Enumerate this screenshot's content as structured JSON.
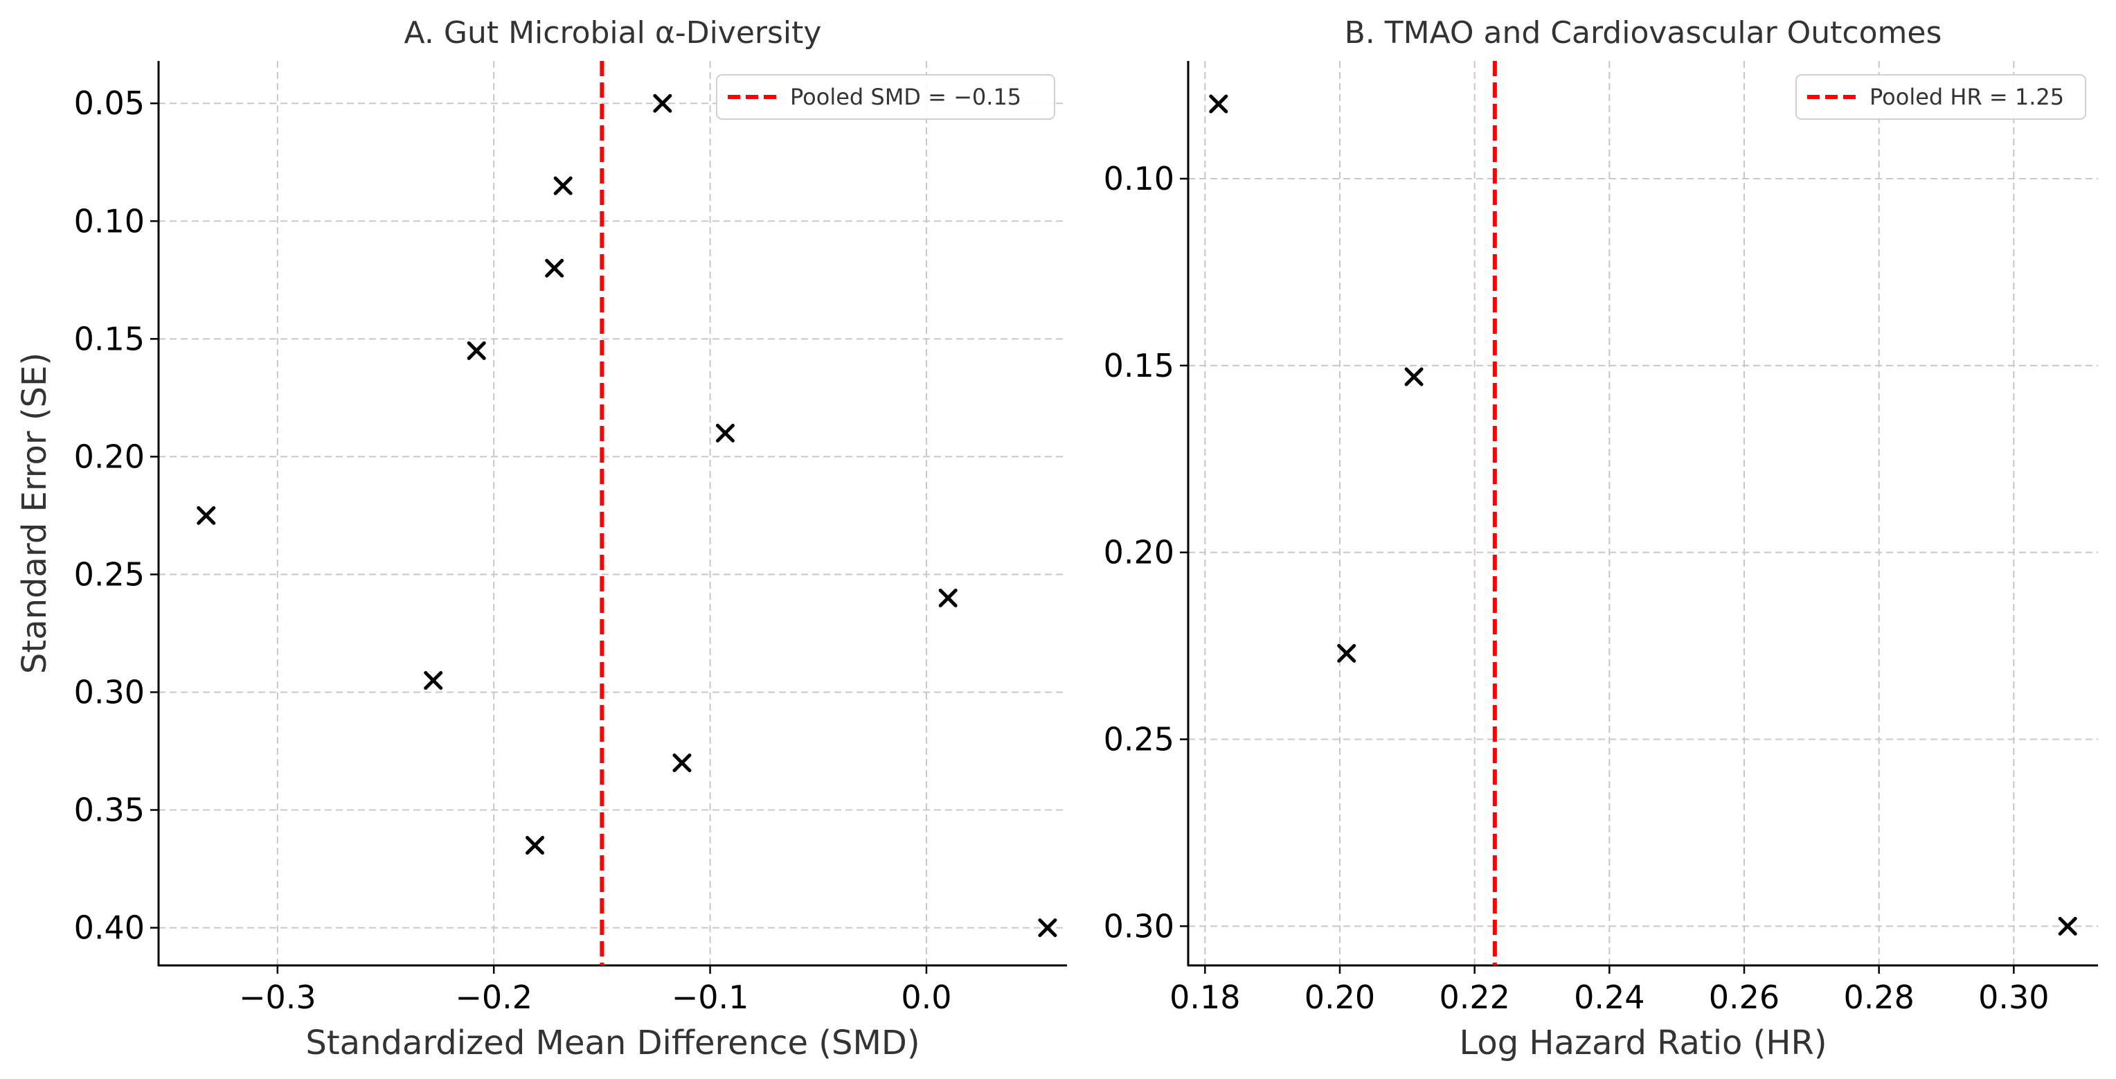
{
  "chart_data": [
    {
      "type": "scatter",
      "title": "A. Gut Microbial α-Diversity",
      "xlabel": "Standardized Mean Difference (SMD)",
      "ylabel": "Standard Error (SE)",
      "xlim": [
        -0.355,
        0.065
      ],
      "ylim": [
        0.032,
        0.416
      ],
      "y_inverted": true,
      "grid": true,
      "marker": "x",
      "x_ticks": [
        -0.3,
        -0.2,
        -0.1,
        0.0
      ],
      "x_tick_labels": [
        "−0.3",
        "−0.2",
        "−0.1",
        "0.0"
      ],
      "y_ticks": [
        0.05,
        0.1,
        0.15,
        0.2,
        0.25,
        0.3,
        0.35,
        0.4
      ],
      "y_tick_labels": [
        "0.05",
        "0.10",
        "0.15",
        "0.20",
        "0.25",
        "0.30",
        "0.35",
        "0.40"
      ],
      "points": [
        {
          "x": -0.122,
          "y": 0.05
        },
        {
          "x": -0.168,
          "y": 0.085
        },
        {
          "x": -0.172,
          "y": 0.12
        },
        {
          "x": -0.208,
          "y": 0.155
        },
        {
          "x": -0.093,
          "y": 0.19
        },
        {
          "x": -0.333,
          "y": 0.225
        },
        {
          "x": 0.01,
          "y": 0.26
        },
        {
          "x": -0.228,
          "y": 0.295
        },
        {
          "x": -0.113,
          "y": 0.33
        },
        {
          "x": -0.181,
          "y": 0.365
        },
        {
          "x": 0.056,
          "y": 0.4
        }
      ],
      "reference_line": {
        "x": -0.15,
        "color": "#ff0000",
        "style": "dashed"
      },
      "legend": {
        "label": "Pooled SMD = −0.15",
        "placement": "top-right"
      }
    },
    {
      "type": "scatter",
      "title": "B. TMAO and Cardiovascular Outcomes",
      "xlabel": "Log Hazard Ratio (HR)",
      "ylabel": "",
      "xlim": [
        0.1775,
        0.3125
      ],
      "ylim": [
        0.0685,
        0.3105
      ],
      "y_inverted": true,
      "grid": true,
      "marker": "x",
      "x_ticks": [
        0.18,
        0.2,
        0.22,
        0.24,
        0.26,
        0.28,
        0.3
      ],
      "x_tick_labels": [
        "0.18",
        "0.20",
        "0.22",
        "0.24",
        "0.26",
        "0.28",
        "0.30"
      ],
      "y_ticks": [
        0.1,
        0.15,
        0.2,
        0.25,
        0.3
      ],
      "y_tick_labels": [
        "0.10",
        "0.15",
        "0.20",
        "0.25",
        "0.30"
      ],
      "points": [
        {
          "x": 0.182,
          "y": 0.08
        },
        {
          "x": 0.211,
          "y": 0.153
        },
        {
          "x": 0.201,
          "y": 0.227
        },
        {
          "x": 0.308,
          "y": 0.3
        }
      ],
      "reference_line": {
        "x": 0.223,
        "color": "#ff0000",
        "style": "dashed"
      },
      "legend": {
        "label": "Pooled HR = 1.25",
        "placement": "top-right"
      }
    }
  ]
}
